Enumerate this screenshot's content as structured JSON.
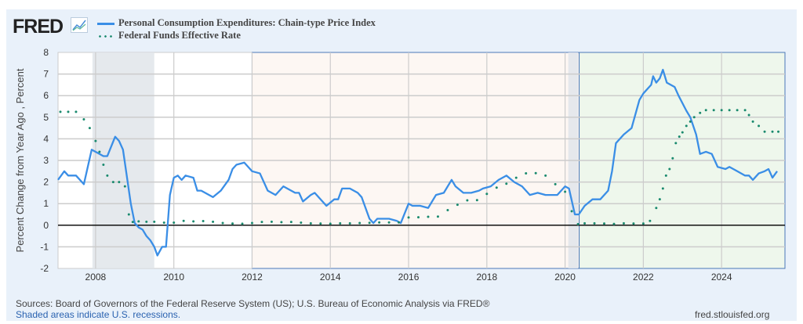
{
  "logo": "FRED",
  "footer": {
    "sources": "Sources: Board of Governors of the Federal Reserve System (US); U.S. Bureau of Economic Analysis via FRED®",
    "shaded": "Shaded areas indicate U.S. recessions.",
    "site": "fred.stlouisfed.org"
  },
  "colors": {
    "pce": "#3a8ee6",
    "ffr": "#1a8a6e",
    "recession": "#e1e5ea",
    "region_beige": "#fdf7f3",
    "region_green": "#eef7ec",
    "region_border": "#4a78b8"
  },
  "chart_data": {
    "type": "line",
    "ylabel": "Percent Change from Year Ago , Percent",
    "xlim": [
      2007.04,
      2025.62
    ],
    "ylim": [
      -2,
      8
    ],
    "yticks": [
      "-2",
      "-1",
      "0",
      "1",
      "2",
      "3",
      "4",
      "5",
      "6",
      "7",
      "8"
    ],
    "xticks": [
      "2008",
      "2010",
      "2012",
      "2014",
      "2016",
      "2018",
      "2020",
      "2022",
      "2024"
    ],
    "grid": true,
    "legend": "top-left",
    "recessions": [
      [
        2007.92,
        2009.5
      ],
      [
        2020.08,
        2020.33
      ]
    ],
    "highlight_regions": [
      [
        2012.0,
        2020.36
      ],
      [
        2020.36,
        2025.62
      ]
    ],
    "series": [
      {
        "name": "Personal Consumption Expenditures: Chain-type Price Index",
        "style": "solid",
        "x": [
          2007.04,
          2007.2,
          2007.3,
          2007.5,
          2007.7,
          2007.9,
          2008.2,
          2008.3,
          2008.5,
          2008.6,
          2008.7,
          2008.9,
          2009.0,
          2009.1,
          2009.2,
          2009.3,
          2009.4,
          2009.5,
          2009.58,
          2009.7,
          2009.8,
          2009.9,
          2010.0,
          2010.1,
          2010.2,
          2010.3,
          2010.5,
          2010.6,
          2010.7,
          2010.9,
          2011.0,
          2011.2,
          2011.4,
          2011.5,
          2011.6,
          2011.8,
          2011.9,
          2012.0,
          2012.2,
          2012.4,
          2012.5,
          2012.6,
          2012.8,
          2012.9,
          2013.1,
          2013.2,
          2013.3,
          2013.5,
          2013.6,
          2013.9,
          2014.1,
          2014.2,
          2014.3,
          2014.5,
          2014.7,
          2014.8,
          2015.0,
          2015.1,
          2015.2,
          2015.5,
          2015.7,
          2015.8,
          2016.0,
          2016.1,
          2016.3,
          2016.5,
          2016.7,
          2016.9,
          2017.1,
          2017.2,
          2017.4,
          2017.6,
          2017.8,
          2017.9,
          2018.1,
          2018.3,
          2018.5,
          2018.7,
          2018.9,
          2019.1,
          2019.3,
          2019.5,
          2019.7,
          2019.8,
          2020.0,
          2020.1,
          2020.25,
          2020.35,
          2020.5,
          2020.7,
          2020.9,
          2021.1,
          2021.2,
          2021.3,
          2021.5,
          2021.7,
          2021.9,
          2022.0,
          2022.2,
          2022.25,
          2022.33,
          2022.42,
          2022.5,
          2022.6,
          2022.8,
          2022.9,
          2023.1,
          2023.2,
          2023.35,
          2023.45,
          2023.6,
          2023.75,
          2023.9,
          2024.1,
          2024.2,
          2024.4,
          2024.6,
          2024.7,
          2024.8,
          2024.95,
          2025.1,
          2025.2,
          2025.3,
          2025.42
        ],
        "y": [
          2.1,
          2.5,
          2.3,
          2.3,
          1.9,
          3.5,
          3.2,
          3.2,
          4.1,
          3.9,
          3.5,
          1.0,
          0.1,
          -0.1,
          -0.2,
          -0.5,
          -0.7,
          -1.0,
          -1.4,
          -1.0,
          -1.0,
          1.4,
          2.2,
          2.3,
          2.1,
          2.3,
          2.2,
          1.6,
          1.6,
          1.4,
          1.3,
          1.6,
          2.1,
          2.6,
          2.8,
          2.9,
          2.7,
          2.5,
          2.4,
          1.6,
          1.5,
          1.4,
          1.8,
          1.7,
          1.5,
          1.5,
          1.1,
          1.4,
          1.5,
          0.9,
          1.2,
          1.2,
          1.7,
          1.7,
          1.5,
          1.3,
          0.3,
          0.1,
          0.3,
          0.3,
          0.2,
          0.1,
          1.0,
          0.9,
          0.9,
          0.8,
          1.4,
          1.5,
          2.1,
          1.8,
          1.5,
          1.5,
          1.6,
          1.7,
          1.8,
          2.1,
          2.3,
          2.0,
          1.8,
          1.4,
          1.5,
          1.4,
          1.4,
          1.4,
          1.8,
          1.7,
          0.5,
          0.5,
          0.9,
          1.2,
          1.2,
          1.6,
          2.5,
          3.8,
          4.2,
          4.5,
          5.8,
          6.1,
          6.5,
          6.9,
          6.6,
          6.8,
          7.2,
          6.6,
          6.4,
          6.0,
          5.3,
          5.0,
          4.2,
          3.3,
          3.4,
          3.3,
          2.7,
          2.6,
          2.7,
          2.5,
          2.3,
          2.3,
          2.1,
          2.4,
          2.5,
          2.6,
          2.2,
          2.5
        ]
      },
      {
        "name": "Federal Funds Effective Rate",
        "style": "dotted",
        "x": [
          2007.1,
          2007.3,
          2007.5,
          2007.7,
          2007.85,
          2008.0,
          2008.1,
          2008.2,
          2008.3,
          2008.45,
          2008.6,
          2008.75,
          2008.85,
          2008.95,
          2009.1,
          2009.3,
          2009.5,
          2009.75,
          2010.0,
          2010.25,
          2010.5,
          2010.75,
          2011.0,
          2011.25,
          2011.5,
          2011.75,
          2012.0,
          2012.25,
          2012.5,
          2012.75,
          2013.0,
          2013.25,
          2013.5,
          2013.75,
          2014.0,
          2014.25,
          2014.5,
          2014.75,
          2015.0,
          2015.25,
          2015.5,
          2015.75,
          2016.0,
          2016.25,
          2016.5,
          2016.75,
          2017.0,
          2017.25,
          2017.5,
          2017.75,
          2018.0,
          2018.25,
          2018.5,
          2018.75,
          2019.0,
          2019.25,
          2019.5,
          2019.75,
          2020.0,
          2020.17,
          2020.33,
          2020.5,
          2020.75,
          2021.0,
          2021.25,
          2021.5,
          2021.75,
          2022.0,
          2022.17,
          2022.33,
          2022.42,
          2022.5,
          2022.58,
          2022.67,
          2022.75,
          2022.83,
          2022.92,
          2023.0,
          2023.1,
          2023.2,
          2023.3,
          2023.45,
          2023.6,
          2023.8,
          2024.0,
          2024.2,
          2024.4,
          2024.6,
          2024.7,
          2024.8,
          2024.95,
          2025.1,
          2025.3,
          2025.45
        ],
        "y": [
          5.25,
          5.25,
          5.25,
          4.9,
          4.5,
          3.9,
          3.4,
          2.8,
          2.3,
          2.0,
          2.0,
          1.8,
          0.5,
          0.15,
          0.18,
          0.16,
          0.16,
          0.12,
          0.12,
          0.2,
          0.18,
          0.19,
          0.16,
          0.1,
          0.08,
          0.07,
          0.1,
          0.15,
          0.16,
          0.14,
          0.15,
          0.12,
          0.09,
          0.08,
          0.07,
          0.09,
          0.09,
          0.1,
          0.11,
          0.13,
          0.13,
          0.13,
          0.36,
          0.37,
          0.39,
          0.4,
          0.7,
          0.95,
          1.15,
          1.16,
          1.45,
          1.74,
          1.92,
          2.2,
          2.4,
          2.41,
          2.3,
          1.9,
          1.55,
          0.65,
          0.05,
          0.09,
          0.09,
          0.08,
          0.06,
          0.09,
          0.08,
          0.08,
          0.2,
          0.8,
          1.2,
          1.7,
          2.3,
          2.6,
          3.1,
          3.8,
          4.1,
          4.3,
          4.6,
          4.8,
          5.0,
          5.2,
          5.33,
          5.33,
          5.33,
          5.33,
          5.33,
          5.33,
          5.1,
          4.8,
          4.6,
          4.33,
          4.33,
          4.33
        ]
      }
    ]
  }
}
